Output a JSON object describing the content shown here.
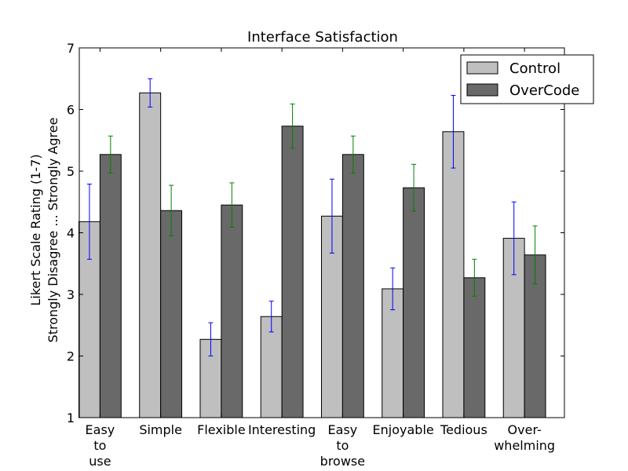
{
  "chart_data": {
    "type": "bar",
    "title": "Interface Satisfaction",
    "xlabel": "",
    "ylabel_lines": [
      "Likert Scale Rating (1-7)",
      "Strongly Disagree ... Strongly Agree"
    ],
    "ylim": [
      1,
      7
    ],
    "yticks": [
      1,
      2,
      3,
      4,
      5,
      6,
      7
    ],
    "categories": [
      [
        "Easy",
        "to",
        "use"
      ],
      [
        "Simple"
      ],
      [
        "Flexible"
      ],
      [
        "Interesting"
      ],
      [
        "Easy",
        "to",
        "browse"
      ],
      [
        "Enjoyable"
      ],
      [
        "Tedious"
      ],
      [
        "Over-",
        "whelming"
      ]
    ],
    "series": [
      {
        "name": "Control",
        "color": "#bfbfbf",
        "error_color": "#0000ff",
        "values": [
          4.18,
          6.27,
          2.27,
          2.64,
          4.27,
          3.09,
          5.64,
          3.91
        ],
        "errors": [
          0.61,
          0.23,
          0.27,
          0.25,
          0.6,
          0.34,
          0.59,
          0.59
        ]
      },
      {
        "name": "OverCode",
        "color": "#696969",
        "error_color": "#008000",
        "values": [
          5.27,
          4.36,
          4.45,
          5.73,
          5.27,
          4.73,
          3.27,
          3.64
        ],
        "errors": [
          0.3,
          0.41,
          0.36,
          0.36,
          0.3,
          0.38,
          0.3,
          0.47
        ]
      }
    ],
    "legend_position": "top-right",
    "grid": false
  }
}
